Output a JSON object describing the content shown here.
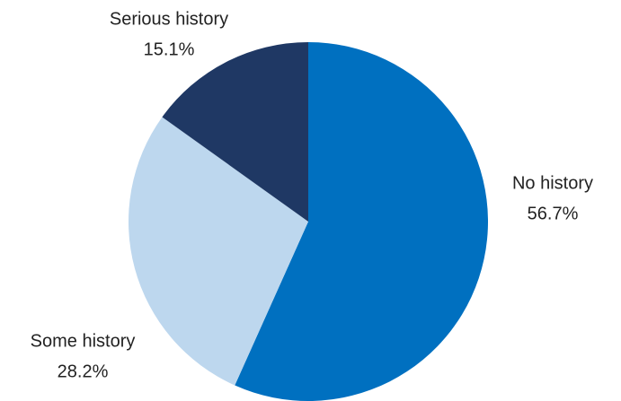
{
  "chart_data": {
    "type": "pie",
    "categories": [
      "No history",
      "Some history",
      "Serious history"
    ],
    "values": [
      56.7,
      28.2,
      15.1
    ],
    "value_labels": [
      "56.7%",
      "28.2%",
      "15.1%"
    ],
    "colors": [
      "#0070c0",
      "#bdd7ee",
      "#1f3864"
    ]
  }
}
